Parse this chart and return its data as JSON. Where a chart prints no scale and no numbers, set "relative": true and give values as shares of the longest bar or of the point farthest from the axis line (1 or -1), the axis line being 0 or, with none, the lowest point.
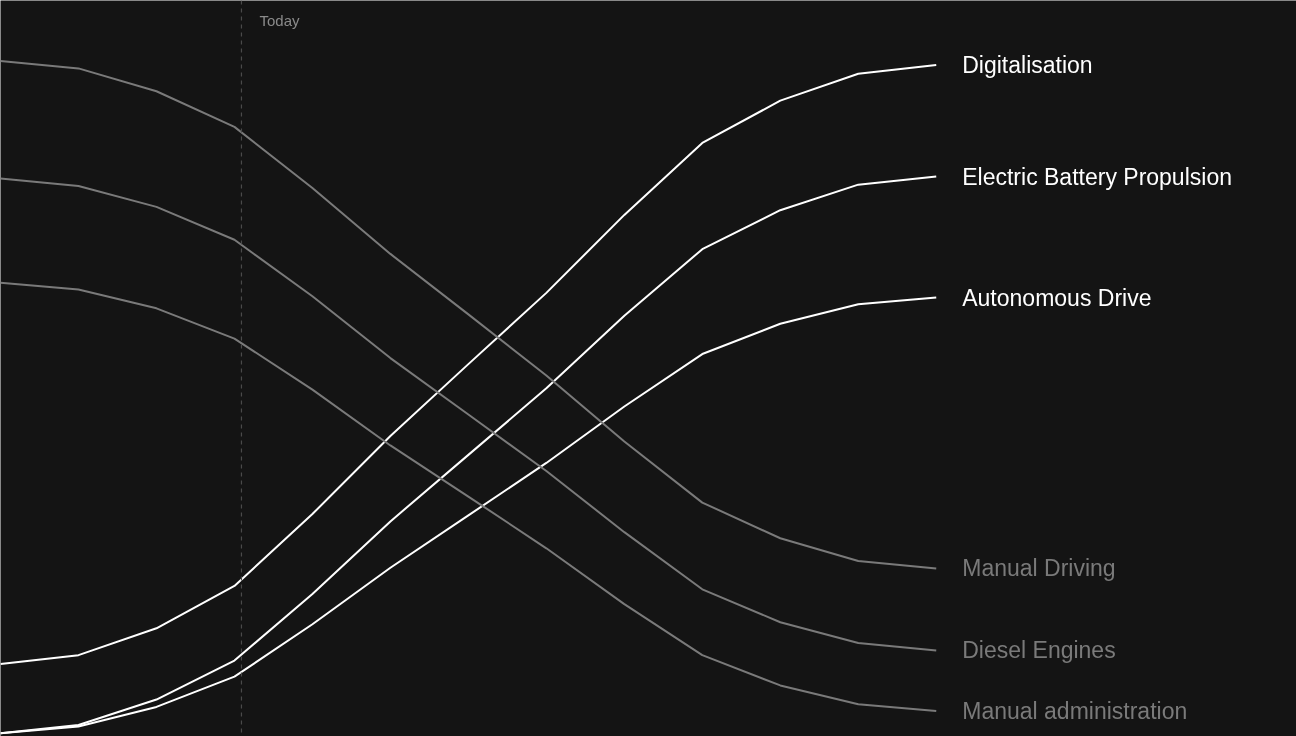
{
  "chart_data": {
    "type": "line",
    "relative": true,
    "categories": [
      null,
      null,
      null,
      null,
      null,
      null,
      null,
      null,
      null,
      null,
      null,
      null,
      null
    ],
    "tick_labels": false,
    "grid": false,
    "series": [
      {
        "name": "Digitalisation",
        "color": "#ffffff",
        "values": [
          0.103,
          0.116,
          0.156,
          0.219,
          0.326,
          0.442,
          0.549,
          0.655,
          0.771,
          0.878,
          0.941,
          0.981,
          0.994
        ]
      },
      {
        "name": "Electric Battery Propulsion",
        "color": "#ffffff",
        "values": [
          0,
          0.012,
          0.05,
          0.108,
          0.207,
          0.315,
          0.414,
          0.513,
          0.621,
          0.72,
          0.778,
          0.816,
          0.828
        ]
      },
      {
        "name": "Autonomous Drive",
        "color": "#ffffff",
        "values": [
          0,
          0.01,
          0.039,
          0.084,
          0.162,
          0.246,
          0.324,
          0.402,
          0.486,
          0.564,
          0.609,
          0.638,
          0.648
        ]
      },
      {
        "name": "Manual Driving",
        "color": "#7a7a7a",
        "values": [
          1.0,
          0.989,
          0.955,
          0.902,
          0.811,
          0.713,
          0.623,
          0.532,
          0.434,
          0.343,
          0.29,
          0.256,
          0.245
        ]
      },
      {
        "name": "Diesel Engines",
        "color": "#7a7a7a",
        "values": [
          0.825,
          0.814,
          0.783,
          0.734,
          0.65,
          0.558,
          0.474,
          0.39,
          0.299,
          0.214,
          0.165,
          0.134,
          0.123
        ]
      },
      {
        "name": "Manual administration",
        "color": "#7a7a7a",
        "values": [
          0.67,
          0.66,
          0.632,
          0.587,
          0.511,
          0.428,
          0.352,
          0.275,
          0.192,
          0.116,
          0.071,
          0.043,
          0.033
        ]
      }
    ],
    "annotations": [
      "Today"
    ]
  }
}
